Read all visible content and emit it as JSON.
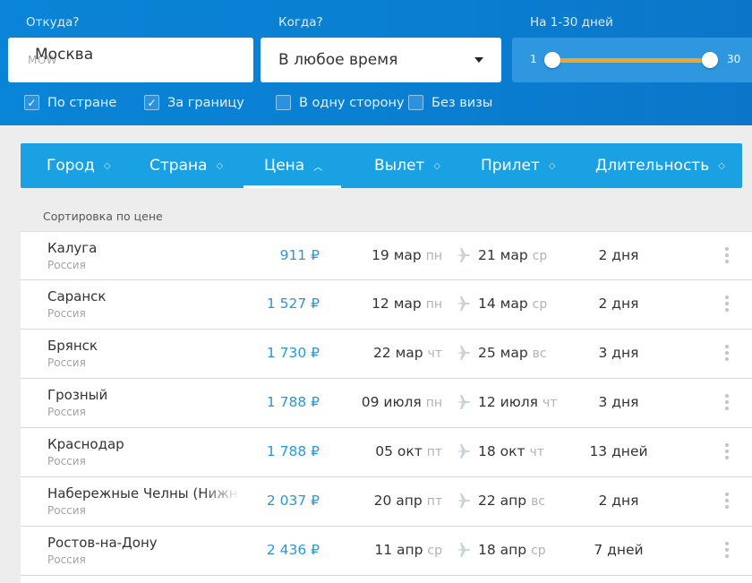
{
  "search": {
    "from_label": "Откуда?",
    "from_city": "Москва",
    "from_code": "MOW",
    "when_label": "Когда?",
    "when_value": "В любое время",
    "duration_label": "На 1-30 дней",
    "duration_min": "1",
    "duration_max": "30",
    "filters": [
      {
        "label": "По стране",
        "checked": true
      },
      {
        "label": "За границу",
        "checked": true
      },
      {
        "label": "В одну сторону",
        "checked": false
      },
      {
        "label": "Без визы",
        "checked": false
      }
    ]
  },
  "sort": {
    "columns": [
      "Город",
      "Страна",
      "Цена",
      "Вылет",
      "Прилет",
      "Длительность"
    ],
    "active": "Цена",
    "caption": "Сортировка по цене"
  },
  "results": [
    {
      "city": "Калуга",
      "country": "Россия",
      "price": "911 ₽",
      "dep_date": "19 мар",
      "dep_dow": "пн",
      "arr_date": "21 мар",
      "arr_dow": "ср",
      "duration": "2 дня"
    },
    {
      "city": "Саранск",
      "country": "Россия",
      "price": "1 527 ₽",
      "dep_date": "12 мар",
      "dep_dow": "пн",
      "arr_date": "14 мар",
      "arr_dow": "ср",
      "duration": "2 дня"
    },
    {
      "city": "Брянск",
      "country": "Россия",
      "price": "1 730 ₽",
      "dep_date": "22 мар",
      "dep_dow": "чт",
      "arr_date": "25 мар",
      "arr_dow": "вс",
      "duration": "3 дня"
    },
    {
      "city": "Грозный",
      "country": "Россия",
      "price": "1 788 ₽",
      "dep_date": "09 июля",
      "dep_dow": "пн",
      "arr_date": "12 июля",
      "arr_dow": "чт",
      "duration": "3 дня"
    },
    {
      "city": "Краснодар",
      "country": "Россия",
      "price": "1 788 ₽",
      "dep_date": "05 окт",
      "dep_dow": "пт",
      "arr_date": "18 окт",
      "arr_dow": "чт",
      "duration": "13 дней"
    },
    {
      "city": "Набережные Челны (Нижнекамск)",
      "country": "Россия",
      "price": "2 037 ₽",
      "dep_date": "20 апр",
      "dep_dow": "пт",
      "arr_date": "22 апр",
      "arr_dow": "вс",
      "duration": "2 дня"
    },
    {
      "city": "Ростов-на-Дону",
      "country": "Россия",
      "price": "2 436 ₽",
      "dep_date": "11 апр",
      "dep_dow": "ср",
      "arr_date": "18 апр",
      "arr_dow": "ср",
      "duration": "7 дней"
    }
  ],
  "colors": {
    "header_blue": "#0a84d6",
    "sortbar_blue": "#1aa1e4",
    "price_blue": "#2b97d6",
    "slider_orange": "#f4a623"
  }
}
